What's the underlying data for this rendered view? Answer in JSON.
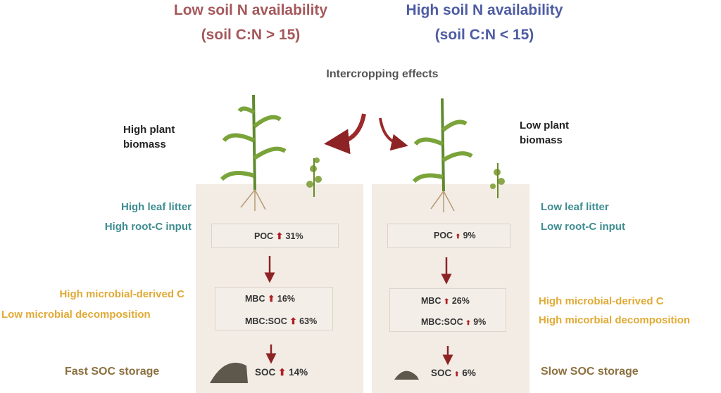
{
  "left": {
    "title": "Low soil N availability",
    "subtitle": "(soil C:N > 15)",
    "biomass": "High plant biomass",
    "input1": "High leaf litter",
    "input2": "High root-C input",
    "micro1": "High microbial-derived C",
    "micro2": "Low microbial decomposition",
    "storage": "Fast SOC storage",
    "poc": {
      "label": "POC",
      "value": "31%"
    },
    "mbc": {
      "label": "MBC",
      "value": "16%"
    },
    "ratio": {
      "label": "MBC:SOC",
      "value": "63%"
    },
    "soc": {
      "label": "SOC",
      "value": "14%"
    }
  },
  "right": {
    "title": "High soil N availability",
    "subtitle": "(soil C:N < 15)",
    "biomass": "Low plant biomass",
    "input1": "Low leaf litter",
    "input2": "Low root-C input",
    "micro1": "High microbial-derived C",
    "micro2": "High micorbial decomposition",
    "storage": "Slow SOC storage",
    "poc": {
      "label": "POC",
      "value": "9%"
    },
    "mbc": {
      "label": "MBC",
      "value": "26%"
    },
    "ratio": {
      "label": "MBC:SOC",
      "value": "9%"
    },
    "soc": {
      "label": "SOC",
      "value": "6%"
    }
  },
  "center": {
    "title": "Intercropping effects"
  },
  "colors": {
    "low_n": "#a5585b",
    "high_n": "#4d5ca3",
    "teal": "#3e8d91",
    "gold": "#e0aa36",
    "arrow": "#8e2325"
  }
}
